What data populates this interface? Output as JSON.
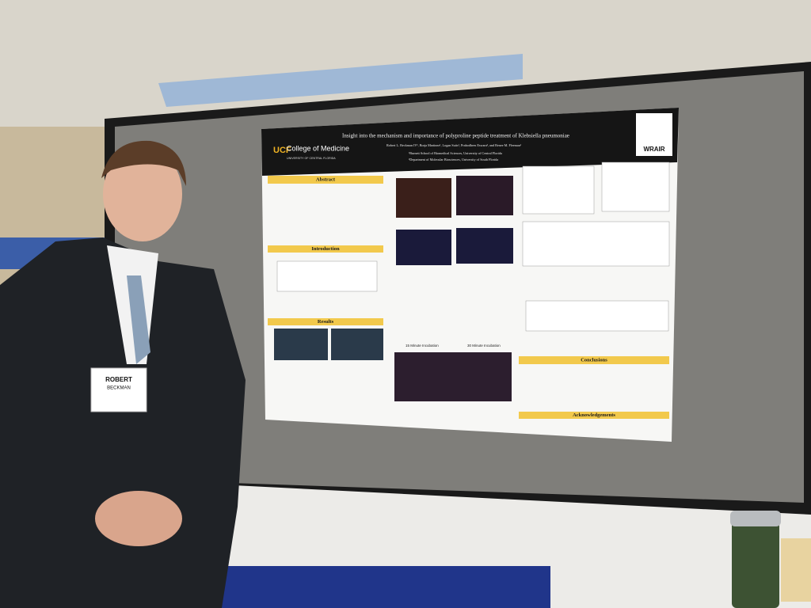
{
  "poster": {
    "title": "Insight into the mechanism and importance of polyproline peptide treatment of Klebsiella pneumoniae",
    "authors": "Robert L. Beckman IV¹, Borja Martinez¹, Logan Suits¹, Prabodhees Eswara², and Renee M. Fleeman¹",
    "affiliations": [
      "¹Burnett School of Biomedical Sciences, University of Central Florida",
      "²Department of Molecular Biosciences, University of South Florida"
    ],
    "logo_left": {
      "mark": "UCF",
      "name": "College of Medicine",
      "university": "UNIVERSITY OF CENTRAL FLORIDA"
    },
    "logo_right": "WRAIR",
    "sections": [
      "Abstract",
      "Introduction",
      "Results",
      "Conclusions",
      "Acknowledgements"
    ],
    "panel_labels": [
      "15 Minute Incubation",
      "30 Minute Incubation"
    ]
  },
  "badge": {
    "first": "ROBERT",
    "last": "BECKMAN"
  }
}
